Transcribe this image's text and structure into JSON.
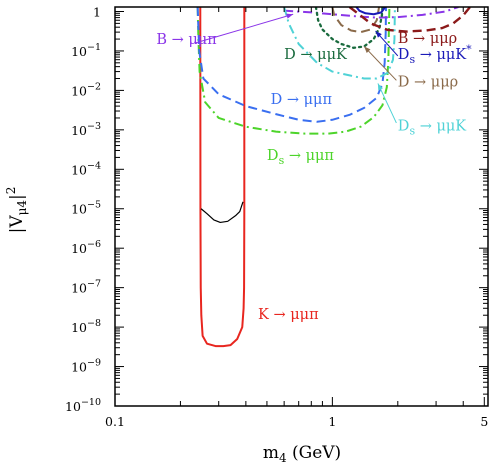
{
  "chart_data": {
    "type": "line",
    "xlabel": "m4 (GeV)",
    "xlabel_parts": {
      "main": "m",
      "sub": "4",
      "rest": " (GeV)"
    },
    "ylabel": "|Vμ4|²",
    "ylabel_parts": {
      "open": "|V",
      "sub": "μ4",
      "close": "|",
      "sup": "2"
    },
    "xscale": "log",
    "yscale": "log",
    "xlim": [
      0.1,
      5.2
    ],
    "ylim": [
      1e-10,
      1.3
    ],
    "grid": false,
    "x_ticks": [
      {
        "value": 0.1,
        "label": "0.1"
      },
      {
        "value": 1,
        "label": "1"
      },
      {
        "value": 5,
        "label": "5"
      }
    ],
    "y_ticks": [
      {
        "value": 1,
        "label": "1",
        "base": "",
        "exp": ""
      },
      {
        "value": 0.1,
        "label": "",
        "base": "10",
        "exp": "−1"
      },
      {
        "value": 0.01,
        "label": "",
        "base": "10",
        "exp": "−2"
      },
      {
        "value": 0.001,
        "label": "",
        "base": "10",
        "exp": "−3"
      },
      {
        "value": 0.0001,
        "label": "",
        "base": "10",
        "exp": "−4"
      },
      {
        "value": 1e-05,
        "label": "",
        "base": "10",
        "exp": "−5"
      },
      {
        "value": 1e-06,
        "label": "",
        "base": "10",
        "exp": "−6"
      },
      {
        "value": 1e-07,
        "label": "",
        "base": "10",
        "exp": "−7"
      },
      {
        "value": 1e-08,
        "label": "",
        "base": "10",
        "exp": "−8"
      },
      {
        "value": 1e-09,
        "label": "",
        "base": "10",
        "exp": "−9"
      },
      {
        "value": 1e-10,
        "label": "",
        "base": "10",
        "exp": "−10"
      }
    ],
    "series": [
      {
        "id": "K-mumupi",
        "color": "#e8261f",
        "dash": "solid",
        "width": 2,
        "points": [
          [
            0.2468,
            1.3
          ],
          [
            0.2472,
            1e-05
          ],
          [
            0.248,
            1e-07
          ],
          [
            0.2495,
            2e-08
          ],
          [
            0.253,
            6e-09
          ],
          [
            0.265,
            3.8e-09
          ],
          [
            0.29,
            3.3e-09
          ],
          [
            0.315,
            3.3e-09
          ],
          [
            0.34,
            3.5e-09
          ],
          [
            0.365,
            5e-09
          ],
          [
            0.385,
            1e-08
          ],
          [
            0.3905,
            3e-08
          ],
          [
            0.3925,
            1e-07
          ],
          [
            0.3935,
            1e-05
          ],
          [
            0.3935,
            1.3
          ]
        ]
      },
      {
        "id": "Ds-mumupi",
        "color": "#4dd42a",
        "dash": "dashdot",
        "width": 2,
        "points": [
          [
            0.24,
            1.3
          ],
          [
            0.242,
            0.2
          ],
          [
            0.245,
            0.03
          ],
          [
            0.26,
            0.005
          ],
          [
            0.3,
            0.002
          ],
          [
            0.4,
            0.0012
          ],
          [
            0.55,
            0.0009
          ],
          [
            0.75,
            0.0008
          ],
          [
            0.95,
            0.0008
          ],
          [
            1.15,
            0.0009
          ],
          [
            1.35,
            0.0012
          ],
          [
            1.55,
            0.0021
          ],
          [
            1.7,
            0.0042
          ],
          [
            1.78,
            0.012
          ],
          [
            1.81,
            0.06
          ],
          [
            1.82,
            0.4
          ],
          [
            1.83,
            1.3
          ]
        ]
      },
      {
        "id": "D-mumupi",
        "color": "#3a6ff0",
        "dash": "dashed",
        "width": 2,
        "points": [
          [
            0.24,
            1.3
          ],
          [
            0.244,
            0.1
          ],
          [
            0.255,
            0.02
          ],
          [
            0.3,
            0.008
          ],
          [
            0.4,
            0.004
          ],
          [
            0.55,
            0.0025
          ],
          [
            0.7,
            0.0018
          ],
          [
            0.85,
            0.0016
          ],
          [
            1.0,
            0.0018
          ],
          [
            1.2,
            0.0024
          ],
          [
            1.4,
            0.0036
          ],
          [
            1.6,
            0.0065
          ],
          [
            1.7,
            0.015
          ],
          [
            1.74,
            0.05
          ],
          [
            1.76,
            0.3
          ],
          [
            1.765,
            1.3
          ]
        ]
      },
      {
        "id": "B-mumupi",
        "color": "#8a35e8",
        "dash": "dashdot",
        "width": 2,
        "points": [
          [
            0.6,
            1.05
          ],
          [
            0.8,
            0.95
          ],
          [
            1.0,
            0.85
          ],
          [
            1.3,
            0.75
          ],
          [
            1.6,
            0.7
          ],
          [
            2.0,
            0.72
          ],
          [
            2.6,
            0.82
          ],
          [
            3.3,
            1.0
          ],
          [
            3.8,
            1.3
          ]
        ]
      },
      {
        "id": "D-mumuK",
        "color": "#1a6b3e",
        "dash": "dotted",
        "width": 2.3,
        "points": [
          [
            0.84,
            1.3
          ],
          [
            0.86,
            0.6
          ],
          [
            0.9,
            0.35
          ],
          [
            1.0,
            0.2
          ],
          [
            1.1,
            0.15
          ],
          [
            1.25,
            0.12
          ],
          [
            1.4,
            0.13
          ],
          [
            1.55,
            0.2
          ],
          [
            1.65,
            0.4
          ],
          [
            1.69,
            0.8
          ],
          [
            1.7,
            1.3
          ]
        ]
      },
      {
        "id": "Ds-mumuK",
        "color": "#4fd2d6",
        "dash": "dashdot",
        "width": 2,
        "points": [
          [
            0.6,
            1.3
          ],
          [
            0.63,
            0.5
          ],
          [
            0.7,
            0.15
          ],
          [
            0.85,
            0.05
          ],
          [
            1.0,
            0.03
          ],
          [
            1.2,
            0.024
          ],
          [
            1.4,
            0.02
          ],
          [
            1.6,
            0.02
          ],
          [
            1.8,
            0.028
          ],
          [
            1.9,
            0.06
          ],
          [
            1.93,
            0.2
          ],
          [
            1.94,
            1.3
          ]
        ]
      },
      {
        "id": "D-mumurho",
        "color": "#8a6a4a",
        "dash": "dashed",
        "width": 2,
        "points": [
          [
            1.0,
            1.3
          ],
          [
            1.02,
            0.8
          ],
          [
            1.1,
            0.45
          ],
          [
            1.22,
            0.33
          ],
          [
            1.35,
            0.3
          ],
          [
            1.5,
            0.35
          ],
          [
            1.6,
            0.6
          ],
          [
            1.64,
            1.3
          ]
        ]
      },
      {
        "id": "Ds-mumuKstar",
        "color": "#1a1ab8",
        "dash": "solid",
        "width": 2,
        "points": [
          [
            1.29,
            1.3
          ],
          [
            1.33,
            1.05
          ],
          [
            1.42,
            0.9
          ],
          [
            1.55,
            0.85
          ],
          [
            1.68,
            0.95
          ],
          [
            1.75,
            1.3
          ]
        ]
      },
      {
        "id": "B-mumurho",
        "color": "#8b1a1a",
        "dash": "dashed",
        "width": 2.4,
        "points": [
          [
            1.2,
            1.3
          ],
          [
            1.5,
            0.5
          ],
          [
            1.8,
            0.34
          ],
          [
            2.2,
            0.31
          ],
          [
            2.7,
            0.33
          ],
          [
            3.2,
            0.38
          ],
          [
            3.6,
            0.5
          ],
          [
            4.0,
            0.8
          ],
          [
            4.3,
            1.3
          ]
        ]
      },
      {
        "id": "K-black",
        "color": "#000000",
        "dash": "solid",
        "width": 1.2,
        "points": [
          [
            0.249,
            1e-05
          ],
          [
            0.265,
            7.5e-06
          ],
          [
            0.285,
            5.2e-06
          ],
          [
            0.305,
            4.5e-06
          ],
          [
            0.33,
            4.8e-06
          ],
          [
            0.36,
            6.8e-06
          ],
          [
            0.375,
            8.5e-06
          ],
          [
            0.388,
            1.5e-05
          ]
        ]
      }
    ],
    "annotations": [
      {
        "id": "B-mumupi",
        "base": "B",
        "sub": "",
        "arrow_text": " → μμπ",
        "sup": "",
        "color": "#8a35e8",
        "x": 0.155,
        "y": 0.15,
        "arrow": {
          "from": [
            0.235,
            0.16
          ],
          "to": [
            0.66,
            0.85
          ]
        }
      },
      {
        "id": "D-mumuK",
        "base": "D",
        "sub": "",
        "arrow_text": " → μμK",
        "sup": "",
        "color": "#1a6b3e",
        "x": 0.6,
        "y": 0.062,
        "arrow": null
      },
      {
        "id": "D-mumupi",
        "base": "D",
        "sub": "",
        "arrow_text": " → μμπ",
        "sup": "",
        "color": "#3a6ff0",
        "x": 0.52,
        "y": 0.0045,
        "arrow": null
      },
      {
        "id": "Ds-mumupi",
        "base": "D",
        "sub": "s",
        "arrow_text": " → μμπ",
        "sup": "",
        "color": "#4dd42a",
        "x": 0.5,
        "y": 0.00017,
        "arrow": null
      },
      {
        "id": "K-mumupi",
        "base": "K",
        "sub": "",
        "arrow_text": " → μμπ",
        "sup": "",
        "color": "#e8261f",
        "x": 0.455,
        "y": 1.6e-08,
        "arrow": null
      },
      {
        "id": "B-mumurho",
        "base": "B",
        "sub": "",
        "arrow_text": " → μμρ",
        "sup": "",
        "color": "#8b1a1a",
        "x": 2.0,
        "y": 0.16,
        "arrow": null
      },
      {
        "id": "Ds-mumuKstar",
        "base": "D",
        "sub": "s",
        "arrow_text": " → μμK",
        "sup": "*",
        "color": "#1a1ab8",
        "x": 2.0,
        "y": 0.062,
        "arrow": {
          "from": [
            2.0,
            0.075
          ],
          "to": [
            1.58,
            0.32
          ]
        }
      },
      {
        "id": "D-mumurho",
        "base": "D",
        "sub": "",
        "arrow_text": " → μμρ",
        "sup": "",
        "color": "#8a6a4a",
        "x": 2.0,
        "y": 0.0125,
        "arrow": {
          "from": [
            1.97,
            0.018
          ],
          "to": [
            1.4,
            0.13
          ]
        }
      },
      {
        "id": "Ds-mumuK",
        "base": "D",
        "sub": "s",
        "arrow_text": " → μμK",
        "sup": "",
        "color": "#4fd2d6",
        "x": 2.0,
        "y": 0.00095,
        "arrow": {
          "from": [
            1.97,
            0.0015
          ],
          "to": [
            1.62,
            0.015
          ]
        }
      }
    ]
  }
}
